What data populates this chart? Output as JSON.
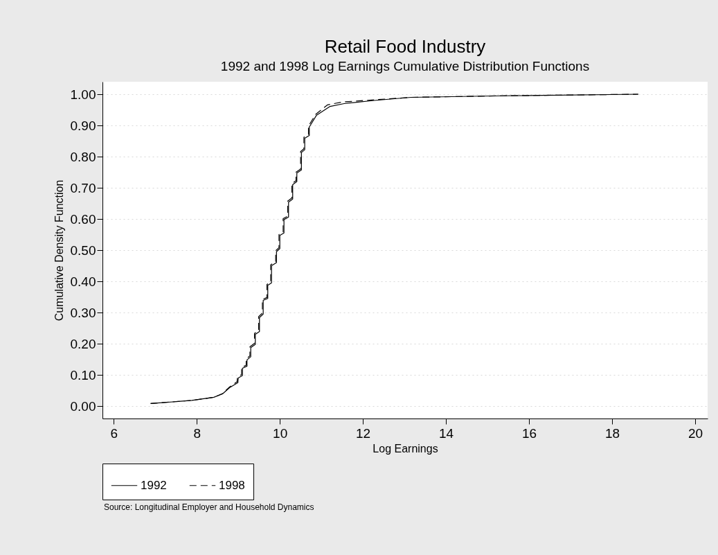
{
  "chart_data": {
    "type": "line",
    "title": "Retail Food Industry",
    "subtitle": "1992 and 1998 Log Earnings Cumulative Distribution Functions",
    "xlabel": "Log Earnings",
    "ylabel": "Cumulative Density Function",
    "xlim": [
      5.73,
      20.3
    ],
    "xticks": [
      6,
      8,
      10,
      12,
      14,
      16,
      18,
      20
    ],
    "ylim": [
      -0.04,
      1.04
    ],
    "yticks": [
      {
        "value": 0,
        "label": "0.00"
      },
      {
        "value": 0.1,
        "label": "0.10"
      },
      {
        "value": 0.2,
        "label": "0.20"
      },
      {
        "value": 0.3,
        "label": "0.30"
      },
      {
        "value": 0.4,
        "label": "0.40"
      },
      {
        "value": 0.5,
        "label": "0.50"
      },
      {
        "value": 0.6,
        "label": "0.60"
      },
      {
        "value": 0.7,
        "label": "0.70"
      },
      {
        "value": 0.8,
        "label": "0.80"
      },
      {
        "value": 0.9,
        "label": "0.90"
      },
      {
        "value": 1,
        "label": "1.00"
      }
    ],
    "grid": "y",
    "legend": "bottom",
    "series": [
      {
        "name": "1992",
        "color": "#000000",
        "line_style": "solid",
        "x": [
          6.89,
          7.88,
          8.41,
          8.62,
          8.79,
          8.99,
          9.0,
          9.1,
          9.1,
          9.21,
          9.21,
          9.3,
          9.3,
          9.41,
          9.41,
          9.51,
          9.51,
          9.6,
          9.6,
          9.71,
          9.71,
          9.8,
          9.8,
          9.92,
          9.92,
          10.0,
          10.0,
          10.1,
          10.1,
          10.21,
          10.21,
          10.31,
          10.31,
          10.41,
          10.41,
          10.52,
          10.52,
          10.6,
          10.6,
          10.71,
          10.71,
          10.88,
          11.21,
          11.55,
          12.27,
          13.16,
          15.38,
          18.63
        ],
        "values": [
          0.008,
          0.018,
          0.028,
          0.039,
          0.059,
          0.075,
          0.09,
          0.098,
          0.121,
          0.128,
          0.148,
          0.158,
          0.187,
          0.198,
          0.23,
          0.239,
          0.284,
          0.295,
          0.339,
          0.345,
          0.387,
          0.395,
          0.45,
          0.46,
          0.495,
          0.505,
          0.547,
          0.555,
          0.598,
          0.606,
          0.654,
          0.664,
          0.71,
          0.72,
          0.747,
          0.757,
          0.813,
          0.822,
          0.859,
          0.868,
          0.895,
          0.932,
          0.961,
          0.97,
          0.98,
          0.99,
          0.995,
          1.0
        ]
      },
      {
        "name": "1998",
        "color": "#000000",
        "line_style": "dashed",
        "x": [
          6.89,
          7.88,
          8.41,
          8.62,
          8.79,
          8.97,
          8.98,
          9.08,
          9.08,
          9.19,
          9.19,
          9.28,
          9.28,
          9.39,
          9.39,
          9.49,
          9.49,
          9.58,
          9.58,
          9.69,
          9.69,
          9.78,
          9.78,
          9.9,
          9.9,
          9.98,
          9.98,
          10.08,
          10.08,
          10.19,
          10.19,
          10.29,
          10.29,
          10.39,
          10.39,
          10.5,
          10.5,
          10.58,
          10.58,
          10.69,
          10.69,
          10.86,
          11.15,
          11.5,
          12.27,
          13.16,
          15.38,
          18.63
        ],
        "values": [
          0.008,
          0.018,
          0.028,
          0.04,
          0.061,
          0.078,
          0.093,
          0.101,
          0.124,
          0.131,
          0.151,
          0.161,
          0.19,
          0.201,
          0.233,
          0.242,
          0.287,
          0.298,
          0.342,
          0.348,
          0.39,
          0.398,
          0.453,
          0.463,
          0.498,
          0.508,
          0.55,
          0.558,
          0.601,
          0.609,
          0.657,
          0.667,
          0.713,
          0.723,
          0.75,
          0.76,
          0.816,
          0.825,
          0.862,
          0.871,
          0.898,
          0.935,
          0.966,
          0.975,
          0.982,
          0.99,
          0.995,
          1.0
        ]
      }
    ],
    "annotations": [
      "Source: Longitudinal Employer and Household Dynamics"
    ]
  }
}
